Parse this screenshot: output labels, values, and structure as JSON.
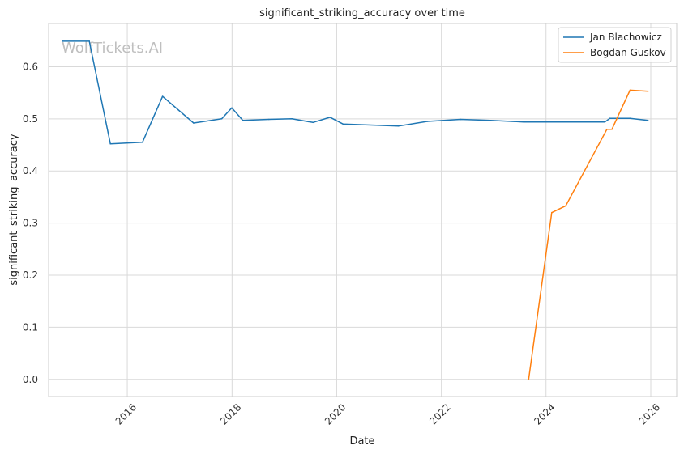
{
  "watermark": "WolfTickets.AI",
  "chart_data": {
    "type": "line",
    "title": "significant_striking_accuracy over time",
    "xlabel": "Date",
    "ylabel": "significant_striking_accuracy",
    "x_ticks": [
      "2016",
      "2018",
      "2020",
      "2022",
      "2024",
      "2026"
    ],
    "y_ticks": [
      "0.0",
      "0.1",
      "0.2",
      "0.3",
      "0.4",
      "0.5",
      "0.6"
    ],
    "xlim": [
      "2014-07-01",
      "2026-07-01"
    ],
    "ylim": [
      -0.033,
      0.683
    ],
    "grid": true,
    "legend_position": "top-right",
    "series": [
      {
        "name": "Jan Blachowicz",
        "color": "#1f77b4",
        "points": [
          [
            "2014-10-05",
            0.649
          ],
          [
            "2015-04-11",
            0.649
          ],
          [
            "2015-09-05",
            0.452
          ],
          [
            "2016-04-16",
            0.455
          ],
          [
            "2016-09-03",
            0.543
          ],
          [
            "2017-04-08",
            0.492
          ],
          [
            "2017-10-21",
            0.5
          ],
          [
            "2017-12-30",
            0.521
          ],
          [
            "2018-03-17",
            0.497
          ],
          [
            "2018-09-15",
            0.499
          ],
          [
            "2019-02-23",
            0.5
          ],
          [
            "2019-07-20",
            0.493
          ],
          [
            "2019-11-16",
            0.503
          ],
          [
            "2020-02-15",
            0.49
          ],
          [
            "2021-03-06",
            0.486
          ],
          [
            "2021-09-25",
            0.495
          ],
          [
            "2022-05-14",
            0.499
          ],
          [
            "2022-12-10",
            0.497
          ],
          [
            "2023-07-29",
            0.494
          ],
          [
            "2024-05-04",
            0.494
          ],
          [
            "2025-02-15",
            0.494
          ],
          [
            "2025-03-22",
            0.501
          ],
          [
            "2025-08-09",
            0.501
          ],
          [
            "2025-12-13",
            0.497
          ]
        ]
      },
      {
        "name": "Bogdan Guskov",
        "color": "#ff7f0e",
        "points": [
          [
            "2023-09-02",
            0.0
          ],
          [
            "2024-02-10",
            0.32
          ],
          [
            "2024-05-18",
            0.333
          ],
          [
            "2025-03-01",
            0.48
          ],
          [
            "2025-04-05",
            0.48
          ],
          [
            "2025-08-09",
            0.555
          ],
          [
            "2025-12-13",
            0.553
          ]
        ]
      }
    ]
  }
}
